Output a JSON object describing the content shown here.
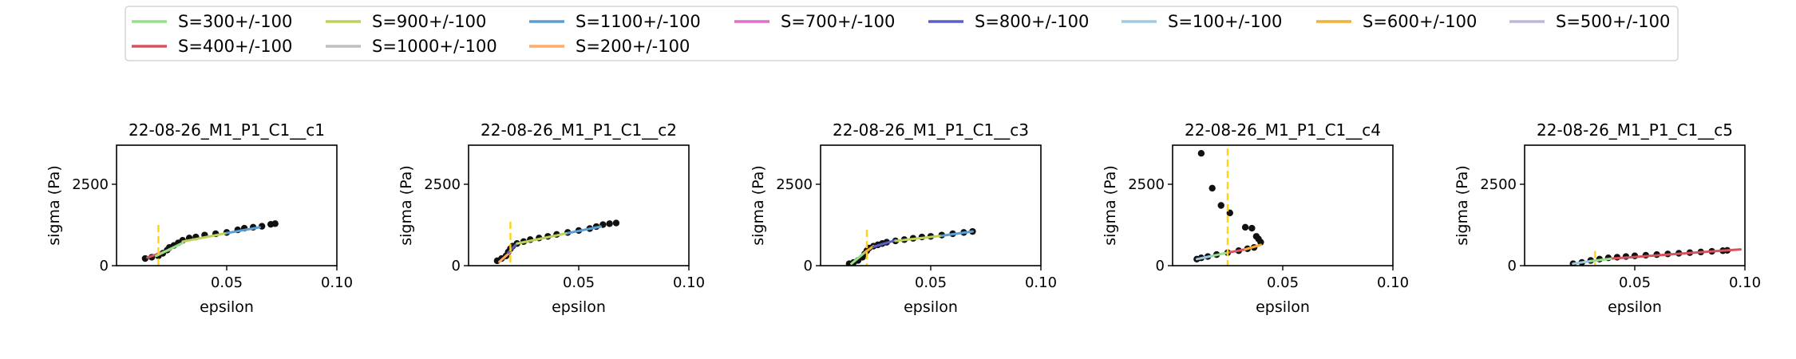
{
  "chart_data": {
    "type": "scatter",
    "legend": {
      "placement": "top-center",
      "entries": [
        {
          "label": "S=300+/-100",
          "color": "#98df8a"
        },
        {
          "label": "S=900+/-100",
          "color": "#bcd35a"
        },
        {
          "label": "S=1100+/-100",
          "color": "#5a9fd4"
        },
        {
          "label": "S=700+/-100",
          "color": "#df6fc8"
        },
        {
          "label": "S=800+/-100",
          "color": "#5b5fc7"
        },
        {
          "label": "S=100+/-100",
          "color": "#9ecae1"
        },
        {
          "label": "S=600+/-100",
          "color": "#f2b134"
        },
        {
          "label": "S=500+/-100",
          "color": "#bcb8d8"
        },
        {
          "label": "S=400+/-100",
          "color": "#d9535f"
        },
        {
          "label": "S=1000+/-100",
          "color": "#bfbfbf"
        },
        {
          "label": "S=200+/-100",
          "color": "#ffaa66"
        }
      ]
    },
    "shared_axes": {
      "xlabel": "epsilon",
      "ylabel": "sigma (Pa)",
      "xlim": [
        0.0,
        0.1
      ],
      "ylim": [
        0,
        3700
      ],
      "xticks": [
        0.05,
        0.1
      ],
      "xtick_labels": [
        "0.05",
        "0.10"
      ],
      "yticks": [
        0,
        2500
      ],
      "ytick_labels": [
        "0",
        "2500"
      ],
      "grid": false
    },
    "panels": [
      {
        "title": "22-08-26_M1_P1_C1__c1",
        "points": [
          [
            0.013,
            220
          ],
          [
            0.016,
            260
          ],
          [
            0.019,
            300
          ],
          [
            0.021,
            380
          ],
          [
            0.023,
            480
          ],
          [
            0.024,
            560
          ],
          [
            0.026,
            620
          ],
          [
            0.028,
            700
          ],
          [
            0.03,
            780
          ],
          [
            0.033,
            850
          ],
          [
            0.036,
            880
          ],
          [
            0.04,
            940
          ],
          [
            0.045,
            980
          ],
          [
            0.05,
            1020
          ],
          [
            0.055,
            1100
          ],
          [
            0.058,
            1150
          ],
          [
            0.062,
            1180
          ],
          [
            0.066,
            1210
          ],
          [
            0.07,
            1270
          ],
          [
            0.072,
            1290
          ]
        ],
        "vline_x": 0.019,
        "vline_y": [
          0,
          1250
        ],
        "fits": [
          {
            "series": "S=400+/-100",
            "x": [
              0.014,
              0.024
            ],
            "y": [
              250,
              480
            ]
          },
          {
            "series": "S=300+/-100",
            "x": [
              0.018,
              0.03
            ],
            "y": [
              300,
              700
            ]
          },
          {
            "series": "S=900+/-100",
            "x": [
              0.03,
              0.05
            ],
            "y": [
              740,
              1000
            ]
          },
          {
            "series": "S=1100+/-100",
            "x": [
              0.05,
              0.065
            ],
            "y": [
              1000,
              1180
            ]
          }
        ]
      },
      {
        "title": "22-08-26_M1_P1_C1__c2",
        "points": [
          [
            0.013,
            150
          ],
          [
            0.015,
            220
          ],
          [
            0.017,
            300
          ],
          [
            0.018,
            420
          ],
          [
            0.019,
            520
          ],
          [
            0.02,
            600
          ],
          [
            0.022,
            680
          ],
          [
            0.025,
            740
          ],
          [
            0.028,
            800
          ],
          [
            0.032,
            850
          ],
          [
            0.036,
            900
          ],
          [
            0.04,
            960
          ],
          [
            0.045,
            1020
          ],
          [
            0.05,
            1080
          ],
          [
            0.055,
            1140
          ],
          [
            0.058,
            1200
          ],
          [
            0.061,
            1260
          ],
          [
            0.064,
            1290
          ],
          [
            0.067,
            1310
          ]
        ],
        "vline_x": 0.019,
        "vline_y": [
          0,
          1350
        ],
        "fits": [
          {
            "series": "S=200+/-100",
            "x": [
              0.014,
              0.019
            ],
            "y": [
              120,
              420
            ]
          },
          {
            "series": "S=800+/-100",
            "x": [
              0.018,
              0.022
            ],
            "y": [
              400,
              680
            ]
          },
          {
            "series": "S=900+/-100",
            "x": [
              0.022,
              0.045
            ],
            "y": [
              680,
              1000
            ]
          },
          {
            "series": "S=1100+/-100",
            "x": [
              0.045,
              0.06
            ],
            "y": [
              1000,
              1200
            ]
          }
        ]
      },
      {
        "title": "22-08-26_M1_P1_C1__c3",
        "points": [
          [
            0.013,
            60
          ],
          [
            0.015,
            100
          ],
          [
            0.017,
            160
          ],
          [
            0.019,
            260
          ],
          [
            0.02,
            360
          ],
          [
            0.021,
            460
          ],
          [
            0.022,
            540
          ],
          [
            0.024,
            600
          ],
          [
            0.026,
            640
          ],
          [
            0.028,
            680
          ],
          [
            0.03,
            720
          ],
          [
            0.034,
            760
          ],
          [
            0.038,
            800
          ],
          [
            0.042,
            840
          ],
          [
            0.046,
            880
          ],
          [
            0.05,
            900
          ],
          [
            0.055,
            940
          ],
          [
            0.06,
            980
          ],
          [
            0.065,
            1020
          ],
          [
            0.069,
            1050
          ]
        ],
        "vline_x": 0.021,
        "vline_y": [
          0,
          1100
        ],
        "fits": [
          {
            "series": "S=300+/-100",
            "x": [
              0.014,
              0.021
            ],
            "y": [
              60,
              460
            ]
          },
          {
            "series": "S=600+/-100",
            "x": [
              0.02,
              0.024
            ],
            "y": [
              400,
              600
            ]
          },
          {
            "series": "S=800+/-100",
            "x": [
              0.024,
              0.034
            ],
            "y": [
              580,
              780
            ]
          },
          {
            "series": "S=900+/-100",
            "x": [
              0.034,
              0.055
            ],
            "y": [
              760,
              920
            ]
          },
          {
            "series": "S=1100+/-100",
            "x": [
              0.055,
              0.069
            ],
            "y": [
              920,
              1050
            ]
          }
        ]
      },
      {
        "title": "22-08-26_M1_P1_C1__c4",
        "points": [
          [
            0.013,
            3450
          ],
          [
            0.018,
            2380
          ],
          [
            0.022,
            1850
          ],
          [
            0.026,
            1620
          ],
          [
            0.033,
            1180
          ],
          [
            0.036,
            1150
          ],
          [
            0.038,
            900
          ],
          [
            0.039,
            820
          ],
          [
            0.04,
            720
          ],
          [
            0.037,
            560
          ],
          [
            0.034,
            520
          ],
          [
            0.03,
            460
          ],
          [
            0.025,
            400
          ],
          [
            0.02,
            340
          ],
          [
            0.016,
            280
          ],
          [
            0.013,
            240
          ],
          [
            0.011,
            200
          ]
        ],
        "vline_x": 0.025,
        "vline_y": [
          0,
          3600
        ],
        "fits": [
          {
            "series": "S=100+/-100",
            "x": [
              0.011,
              0.018
            ],
            "y": [
              200,
              300
            ]
          },
          {
            "series": "S=300+/-100",
            "x": [
              0.018,
              0.025
            ],
            "y": [
              300,
              400
            ]
          },
          {
            "series": "S=400+/-100",
            "x": [
              0.025,
              0.033
            ],
            "y": [
              400,
              500
            ]
          },
          {
            "series": "S=600+/-100",
            "x": [
              0.033,
              0.04
            ],
            "y": [
              500,
              640
            ]
          }
        ]
      },
      {
        "title": "22-08-26_M1_P1_C1__c5",
        "points": [
          [
            0.022,
            60
          ],
          [
            0.026,
            100
          ],
          [
            0.03,
            160
          ],
          [
            0.034,
            200
          ],
          [
            0.038,
            240
          ],
          [
            0.042,
            260
          ],
          [
            0.046,
            280
          ],
          [
            0.05,
            300
          ],
          [
            0.055,
            320
          ],
          [
            0.06,
            340
          ],
          [
            0.065,
            360
          ],
          [
            0.07,
            380
          ],
          [
            0.075,
            400
          ],
          [
            0.08,
            420
          ],
          [
            0.085,
            440
          ],
          [
            0.09,
            460
          ],
          [
            0.092,
            470
          ]
        ],
        "vline_x": 0.032,
        "vline_y": [
          0,
          450
        ],
        "fits": [
          {
            "series": "S=100+/-100",
            "x": [
              0.022,
              0.03
            ],
            "y": [
              60,
              140
            ]
          },
          {
            "series": "S=300+/-100",
            "x": [
              0.03,
              0.04
            ],
            "y": [
              140,
              220
            ]
          },
          {
            "series": "S=400+/-100",
            "x": [
              0.04,
              0.098
            ],
            "y": [
              220,
              500
            ]
          }
        ]
      }
    ]
  }
}
